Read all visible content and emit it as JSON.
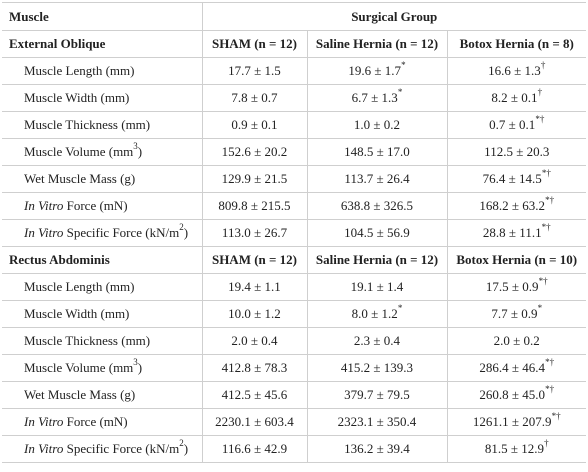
{
  "header": {
    "muscle_label": "Muscle",
    "group_label": "Surgical Group"
  },
  "sections": [
    {
      "title": "External Oblique",
      "cols": [
        "SHAM (n = 12)",
        "Saline Hernia (n = 12)",
        "Botox Hernia (n = 8)"
      ],
      "rows": [
        {
          "pre": "",
          "label": "Muscle Length (mm)",
          "sup": "",
          "post": "",
          "v1": "17.7 ± 1.5",
          "v1s": "",
          "v2": "19.6 ± 1.7",
          "v2s": "*",
          "v3": "16.6 ± 1.3",
          "v3s": "†"
        },
        {
          "pre": "",
          "label": "Muscle Width (mm)",
          "sup": "",
          "post": "",
          "v1": "7.8 ± 0.7",
          "v1s": "",
          "v2": "6.7 ± 1.3",
          "v2s": "*",
          "v3": "8.2 ± 0.1",
          "v3s": "†"
        },
        {
          "pre": "",
          "label": "Muscle Thickness (mm)",
          "sup": "",
          "post": "",
          "v1": "0.9 ± 0.1",
          "v1s": "",
          "v2": "1.0 ± 0.2",
          "v2s": "",
          "v3": "0.7 ± 0.1",
          "v3s": "*†"
        },
        {
          "pre": "",
          "label": "Muscle Volume (mm",
          "sup": "3",
          "post": ")",
          "v1": "152.6 ± 20.2",
          "v1s": "",
          "v2": "148.5 ± 17.0",
          "v2s": "",
          "v3": "112.5 ± 20.3",
          "v3s": ""
        },
        {
          "pre": "",
          "label": "Wet Muscle Mass (g)",
          "sup": "",
          "post": "",
          "v1": "129.9 ± 21.5",
          "v1s": "",
          "v2": "113.7 ± 26.4",
          "v2s": "",
          "v3": "76.4 ± 14.5",
          "v3s": "*†"
        },
        {
          "pre": "In Vitro",
          "label": " Force (mN)",
          "sup": "",
          "post": "",
          "v1": "809.8 ± 215.5",
          "v1s": "",
          "v2": "638.8 ± 326.5",
          "v2s": "",
          "v3": "168.2 ± 63.2",
          "v3s": "*†"
        },
        {
          "pre": "In Vitro",
          "label": " Specific Force (kN/m",
          "sup": "2",
          "post": ")",
          "v1": "113.0 ± 26.7",
          "v1s": "",
          "v2": "104.5 ± 56.9",
          "v2s": "",
          "v3": "28.8 ± 11.1",
          "v3s": "*†"
        }
      ]
    },
    {
      "title": "Rectus Abdominis",
      "cols": [
        "SHAM (n = 12)",
        "Saline Hernia (n = 12)",
        "Botox Hernia (n = 10)"
      ],
      "rows": [
        {
          "pre": "",
          "label": "Muscle Length (mm)",
          "sup": "",
          "post": "",
          "v1": "19.4 ± 1.1",
          "v1s": "",
          "v2": "19.1 ± 1.4",
          "v2s": "",
          "v3": "17.5 ± 0.9",
          "v3s": "*†"
        },
        {
          "pre": "",
          "label": "Muscle Width (mm)",
          "sup": "",
          "post": "",
          "v1": "10.0 ± 1.2",
          "v1s": "",
          "v2": "8.0 ± 1.2",
          "v2s": "*",
          "v3": "7.7 ± 0.9",
          "v3s": "*"
        },
        {
          "pre": "",
          "label": "Muscle Thickness (mm)",
          "sup": "",
          "post": "",
          "v1": "2.0 ± 0.4",
          "v1s": "",
          "v2": "2.3 ± 0.4",
          "v2s": "",
          "v3": "2.0 ± 0.2",
          "v3s": ""
        },
        {
          "pre": "",
          "label": "Muscle Volume (mm",
          "sup": "3",
          "post": ")",
          "v1": "412.8 ± 78.3",
          "v1s": "",
          "v2": "415.2 ± 139.3",
          "v2s": "",
          "v3": "286.4 ± 46.4",
          "v3s": "*†"
        },
        {
          "pre": "",
          "label": "Wet Muscle Mass (g)",
          "sup": "",
          "post": "",
          "v1": "412.5 ± 45.6",
          "v1s": "",
          "v2": "379.7 ± 79.5",
          "v2s": "",
          "v3": "260.8 ± 45.0",
          "v3s": "*†"
        },
        {
          "pre": "In Vitro",
          "label": " Force (mN)",
          "sup": "",
          "post": "",
          "v1": "2230.1 ± 603.4",
          "v1s": "",
          "v2": "2323.1 ± 350.4",
          "v2s": "",
          "v3": "1261.1 ± 207.9",
          "v3s": "*†"
        },
        {
          "pre": "In Vitro",
          "label": " Specific Force (kN/m",
          "sup": "2",
          "post": ")",
          "v1": "116.6 ± 42.9",
          "v1s": "",
          "v2": "136.2 ± 39.4",
          "v2s": "",
          "v3": "81.5 ± 12.9",
          "v3s": "†"
        }
      ]
    }
  ]
}
